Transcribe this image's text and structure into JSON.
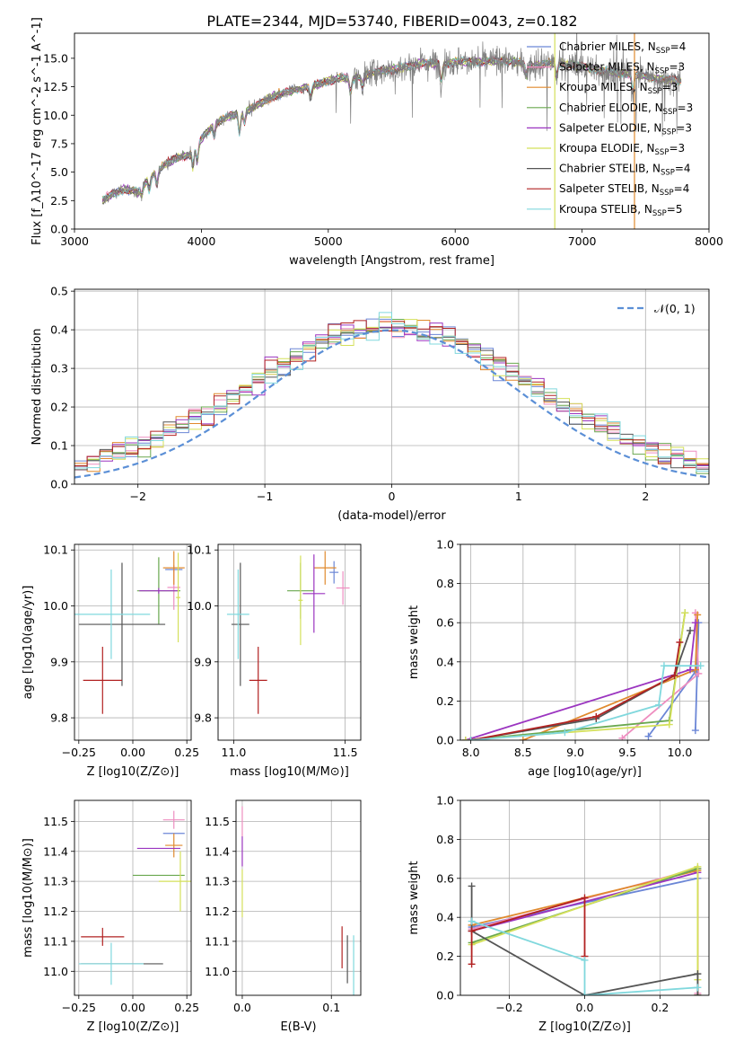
{
  "figure_title": "PLATE=2344, MJD=53740, FIBERID=0043, z=0.182",
  "colors": {
    "Chabrier MILES": "#6b86d6",
    "Salpeter MILES": "#ee8ec0",
    "Kroupa MILES": "#e08a2e",
    "Chabrier ELODIE": "#6aa84f",
    "Salpeter ELODIE": "#9b35c0",
    "Kroupa ELODIE": "#d4e05a",
    "Chabrier STELIB": "#555555",
    "Salpeter STELIB": "#b22222",
    "Kroupa STELIB": "#80d8dd",
    "gaussian": "#5b8fd6"
  },
  "chart_data": [
    {
      "id": "spectrum",
      "type": "line",
      "title": "PLATE=2344, MJD=53740, FIBERID=0043, z=0.182",
      "xlabel": "wavelength [Angstrom, rest frame]",
      "ylabel": "Flux [f_λ10^-17 erg cm^-2 s^-1 A^-1]",
      "xlim": [
        3000,
        8000
      ],
      "ylim": [
        0,
        17.2
      ],
      "xticks": [
        3000,
        4000,
        5000,
        6000,
        7000,
        8000
      ],
      "yticks": [
        0.0,
        2.5,
        5.0,
        7.5,
        10.0,
        12.5,
        15.0
      ],
      "grid": false,
      "legend_position": "top-right",
      "legend": [
        {
          "name": "Chabrier MILES, N_SSP=4",
          "base": "Chabrier MILES, N",
          "sub": "SSP",
          "tail": "=4",
          "color": "#6b86d6"
        },
        {
          "name": "Salpeter MILES, N_SSP=3",
          "base": "Salpeter MILES, N",
          "sub": "SSP",
          "tail": "=3",
          "color": "#ee8ec0"
        },
        {
          "name": "Kroupa MILES, N_SSP=3",
          "base": "Kroupa MILES, N",
          "sub": "SSP",
          "tail": "=3",
          "color": "#e08a2e"
        },
        {
          "name": "Chabrier ELODIE, N_SSP=3",
          "base": "Chabrier ELODIE, N",
          "sub": "SSP",
          "tail": "=3",
          "color": "#6aa84f"
        },
        {
          "name": "Salpeter ELODIE, N_SSP=3",
          "base": "Salpeter ELODIE, N",
          "sub": "SSP",
          "tail": "=3",
          "color": "#9b35c0"
        },
        {
          "name": "Kroupa ELODIE, N_SSP=3",
          "base": "Kroupa ELODIE, N",
          "sub": "SSP",
          "tail": "=3",
          "color": "#d4e05a"
        },
        {
          "name": "Chabrier STELIB, N_SSP=4",
          "base": "Chabrier STELIB, N",
          "sub": "SSP",
          "tail": "=4",
          "color": "#555555"
        },
        {
          "name": "Salpeter STELIB, N_SSP=4",
          "base": "Salpeter STELIB, N",
          "sub": "SSP",
          "tail": "=4",
          "color": "#b22222"
        },
        {
          "name": "Kroupa STELIB, N_SSP=5",
          "base": "Kroupa STELIB, N",
          "sub": "SSP",
          "tail": "=5",
          "color": "#80d8dd"
        }
      ],
      "envelope": [
        [
          3220,
          2.5
        ],
        [
          3300,
          3.1
        ],
        [
          3400,
          3.5
        ],
        [
          3500,
          3.3
        ],
        [
          3600,
          4.6
        ],
        [
          3700,
          5.6
        ],
        [
          3800,
          6.2
        ],
        [
          3900,
          6.5
        ],
        [
          4000,
          7.9
        ],
        [
          4100,
          9.2
        ],
        [
          4200,
          9.8
        ],
        [
          4300,
          10.2
        ],
        [
          4400,
          10.6
        ],
        [
          4500,
          11.3
        ],
        [
          4600,
          11.8
        ],
        [
          4700,
          12.1
        ],
        [
          4800,
          12.4
        ],
        [
          4900,
          12.6
        ],
        [
          5000,
          13.0
        ],
        [
          5100,
          13.3
        ],
        [
          5200,
          13.2
        ],
        [
          5300,
          13.5
        ],
        [
          5400,
          13.9
        ],
        [
          5500,
          14.0
        ],
        [
          5600,
          14.2
        ],
        [
          5700,
          14.5
        ],
        [
          5800,
          14.6
        ],
        [
          5900,
          14.5
        ],
        [
          6000,
          14.7
        ],
        [
          6200,
          14.7
        ],
        [
          6400,
          14.8
        ],
        [
          6600,
          14.4
        ],
        [
          6800,
          14.6
        ],
        [
          7000,
          14.3
        ],
        [
          7200,
          13.8
        ],
        [
          7400,
          13.6
        ],
        [
          7600,
          13.2
        ],
        [
          7800,
          13.0
        ]
      ],
      "absorption_features": [
        [
          3530,
          0.8
        ],
        [
          3590,
          1.0
        ],
        [
          3650,
          1.2
        ],
        [
          3934,
          1.4
        ],
        [
          3968,
          1.5
        ],
        [
          4101,
          1.0
        ],
        [
          4300,
          1.8
        ],
        [
          4340,
          1.0
        ],
        [
          4861,
          1.0
        ],
        [
          5175,
          1.3
        ],
        [
          5270,
          0.8
        ],
        [
          5890,
          1.5
        ],
        [
          6563,
          1.0
        ],
        [
          6800,
          1.2
        ],
        [
          7400,
          1.5
        ]
      ],
      "vertical_lines": [
        {
          "x": 6785,
          "color": "#d4e05a"
        },
        {
          "x": 7413,
          "color": "#e08a2e"
        }
      ]
    },
    {
      "id": "residuals",
      "type": "histogram",
      "xlabel": "(data-model)/error",
      "ylabel": "Normed distribution",
      "xlim": [
        -2.5,
        2.5
      ],
      "ylim": [
        0,
        0.505
      ],
      "xticks": [
        -2,
        -1,
        0,
        1,
        2
      ],
      "yticks": [
        0.0,
        0.1,
        0.2,
        0.3,
        0.4,
        0.5
      ],
      "grid": true,
      "legend_position": "top-right",
      "legend": [
        {
          "name": "𝒩(0, 1)",
          "color": "#5b8fd6",
          "dash": true
        }
      ],
      "bin_width": 0.1
    },
    {
      "id": "age_vs_Z",
      "type": "errorbar",
      "xlabel": "Z [log10(Z/Z⊙)]",
      "ylabel": "age [log10(age/yr)]",
      "xlim": [
        -0.27,
        0.27
      ],
      "ylim": [
        9.76,
        10.11
      ],
      "xticks": [
        -0.25,
        0.0,
        0.25
      ],
      "xtick_labels": [
        "−0.25",
        "0.00",
        "0.25"
      ],
      "yticks": [
        9.8,
        9.9,
        10.0,
        10.1
      ],
      "grid": true,
      "points": [
        {
          "model": "Chabrier MILES",
          "x": 0.19,
          "y": 10.065,
          "xerr": 0.04,
          "yerr": 0.005
        },
        {
          "model": "Salpeter MILES",
          "x": 0.19,
          "y": 10.033,
          "xerr": 0.03,
          "yerr": 0.04
        },
        {
          "model": "Kroupa MILES",
          "x": 0.19,
          "y": 10.068,
          "xerr": 0.05,
          "yerr": 0.03
        },
        {
          "model": "Chabrier ELODIE",
          "x": 0.12,
          "y": 10.027,
          "xerr": 0.1,
          "yerr": 0.06
        },
        {
          "model": "Salpeter ELODIE",
          "x": 0.12,
          "y": 10.027,
          "xerr": 0.09,
          "yerr": 0.005
        },
        {
          "model": "Kroupa ELODIE",
          "x": 0.21,
          "y": 10.015,
          "xerr": 0.01,
          "yerr": 0.08
        },
        {
          "model": "Chabrier STELIB",
          "x": -0.05,
          "y": 9.967,
          "xerr": 0.2,
          "yerr": 0.11
        },
        {
          "model": "Salpeter STELIB",
          "x": -0.14,
          "y": 9.867,
          "xerr": 0.09,
          "yerr": 0.06
        },
        {
          "model": "Kroupa STELIB",
          "x": -0.1,
          "y": 9.985,
          "xerr": 0.18,
          "yerr": 0.08
        }
      ]
    },
    {
      "id": "age_vs_mass",
      "type": "errorbar",
      "xlabel": "mass [log10(M/M⊙)]",
      "ylabel": "",
      "xlim": [
        10.93,
        11.57
      ],
      "ylim": [
        9.76,
        10.11
      ],
      "xticks": [
        11.0,
        11.5
      ],
      "yticks": [
        9.8,
        9.9,
        10.0,
        10.1
      ],
      "grid": true,
      "points": [
        {
          "model": "Chabrier MILES",
          "x": 11.45,
          "y": 10.06,
          "xerr": 0.02,
          "yerr": 0.02
        },
        {
          "model": "Salpeter MILES",
          "x": 11.49,
          "y": 10.032,
          "xerr": 0.03,
          "yerr": 0.03
        },
        {
          "model": "Kroupa MILES",
          "x": 11.41,
          "y": 10.068,
          "xerr": 0.05,
          "yerr": 0.03
        },
        {
          "model": "Chabrier ELODIE",
          "x": 11.3,
          "y": 10.027,
          "xerr": 0.06,
          "yerr": 0.05
        },
        {
          "model": "Salpeter ELODIE",
          "x": 11.36,
          "y": 10.022,
          "xerr": 0.05,
          "yerr": 0.07
        },
        {
          "model": "Kroupa ELODIE",
          "x": 11.3,
          "y": 10.01,
          "xerr": 0.01,
          "yerr": 0.08
        },
        {
          "model": "Chabrier STELIB",
          "x": 11.03,
          "y": 9.967,
          "xerr": 0.04,
          "yerr": 0.11
        },
        {
          "model": "Salpeter STELIB",
          "x": 11.11,
          "y": 9.867,
          "xerr": 0.04,
          "yerr": 0.06
        },
        {
          "model": "Kroupa STELIB",
          "x": 11.02,
          "y": 9.985,
          "xerr": 0.05,
          "yerr": 0.08
        }
      ]
    },
    {
      "id": "mass_weight_vs_age",
      "type": "line",
      "xlabel": "age [log10(age/yr)]",
      "ylabel": "mass weight",
      "xlim": [
        7.9,
        10.28
      ],
      "ylim": [
        0,
        1.0
      ],
      "xticks": [
        8.0,
        8.5,
        9.0,
        9.5,
        10.0
      ],
      "yticks": [
        0.0,
        0.2,
        0.4,
        0.6,
        0.8,
        1.0
      ],
      "grid": true,
      "series": [
        {
          "model": "Chabrier MILES",
          "points": [
            [
              9.7,
              0.02
            ],
            [
              10.15,
              0.35
            ],
            [
              10.18,
              0.6
            ],
            [
              10.15,
              0.05
            ]
          ]
        },
        {
          "model": "Salpeter MILES",
          "points": [
            [
              9.45,
              0.01
            ],
            [
              10.18,
              0.34
            ],
            [
              10.15,
              0.65
            ]
          ]
        },
        {
          "model": "Kroupa MILES",
          "points": [
            [
              8.5,
              0.0
            ],
            [
              10.15,
              0.36
            ],
            [
              10.17,
              0.64
            ]
          ]
        },
        {
          "model": "Chabrier ELODIE",
          "points": [
            [
              7.95,
              0.0
            ],
            [
              9.9,
              0.1
            ],
            [
              10.05,
              0.65
            ]
          ]
        },
        {
          "model": "Salpeter ELODIE",
          "points": [
            [
              7.95,
              0.0
            ],
            [
              10.1,
              0.36
            ],
            [
              10.15,
              0.6
            ]
          ]
        },
        {
          "model": "Kroupa ELODIE",
          "points": [
            [
              7.95,
              0.0
            ],
            [
              9.9,
              0.08
            ],
            [
              10.05,
              0.65
            ]
          ]
        },
        {
          "model": "Chabrier STELIB",
          "points": [
            [
              8.0,
              0.0
            ],
            [
              9.2,
              0.11
            ],
            [
              9.95,
              0.33
            ],
            [
              10.1,
              0.56
            ]
          ]
        },
        {
          "model": "Salpeter STELIB",
          "points": [
            [
              8.0,
              0.0
            ],
            [
              9.2,
              0.12
            ],
            [
              9.95,
              0.33
            ],
            [
              10.0,
              0.5
            ]
          ]
        },
        {
          "model": "Kroupa STELIB",
          "points": [
            [
              8.0,
              0.0
            ],
            [
              8.9,
              0.04
            ],
            [
              9.8,
              0.18
            ],
            [
              9.85,
              0.38
            ],
            [
              10.2,
              0.38
            ]
          ]
        }
      ]
    },
    {
      "id": "mass_vs_Z",
      "type": "errorbar",
      "xlabel": "Z [log10(Z/Z⊙)]",
      "ylabel": "mass [log10(M/M⊙)]",
      "xlim": [
        -0.27,
        0.27
      ],
      "ylim": [
        10.92,
        11.57
      ],
      "xticks": [
        -0.25,
        0.0,
        0.25
      ],
      "xtick_labels": [
        "−0.25",
        "0.00",
        "0.25"
      ],
      "yticks": [
        11.0,
        11.1,
        11.2,
        11.3,
        11.4,
        11.5
      ],
      "grid": true,
      "points": [
        {
          "model": "Chabrier MILES",
          "x": 0.19,
          "y": 11.46,
          "xerr": 0.05,
          "yerr": 0.0
        },
        {
          "model": "Salpeter MILES",
          "x": 0.19,
          "y": 11.505,
          "xerr": 0.05,
          "yerr": 0.03
        },
        {
          "model": "Kroupa MILES",
          "x": 0.19,
          "y": 11.42,
          "xerr": 0.04,
          "yerr": 0.04
        },
        {
          "model": "Chabrier ELODIE",
          "x": 0.12,
          "y": 11.32,
          "xerr": 0.12,
          "yerr": 0.0
        },
        {
          "model": "Salpeter ELODIE",
          "x": 0.12,
          "y": 11.41,
          "xerr": 0.1,
          "yerr": 0.0
        },
        {
          "model": "Kroupa ELODIE",
          "x": 0.22,
          "y": 11.3,
          "xerr": 0.1,
          "yerr": 0.1
        },
        {
          "model": "Chabrier STELIB",
          "x": -0.05,
          "y": 11.025,
          "xerr": 0.19,
          "yerr": 0.0
        },
        {
          "model": "Salpeter STELIB",
          "x": -0.14,
          "y": 11.115,
          "xerr": 0.1,
          "yerr": 0.03
        },
        {
          "model": "Kroupa STELIB",
          "x": -0.1,
          "y": 11.025,
          "xerr": 0.15,
          "yerr": 0.07
        }
      ]
    },
    {
      "id": "mass_vs_ebv",
      "type": "errorbar",
      "xlabel": "E(B-V)",
      "ylabel": "",
      "xlim": [
        -0.007,
        0.133
      ],
      "ylim": [
        10.92,
        11.57
      ],
      "xticks": [
        0.0,
        0.1
      ],
      "yticks": [
        11.0,
        11.1,
        11.2,
        11.3,
        11.4,
        11.5
      ],
      "grid": true,
      "points": [
        {
          "model": "Salpeter MILES",
          "x": 0.0,
          "y": 11.5,
          "xerr": 0.0,
          "yerr": 0.05
        },
        {
          "model": "Salpeter ELODIE",
          "x": 0.0,
          "y": 11.4,
          "xerr": 0.0,
          "yerr": 0.05
        },
        {
          "model": "Kroupa ELODIE",
          "x": 0.0,
          "y": 11.26,
          "xerr": 0.0,
          "yerr": 0.08
        },
        {
          "model": "Salpeter STELIB",
          "x": 0.112,
          "y": 11.08,
          "xerr": 0.0,
          "yerr": 0.07
        },
        {
          "model": "Chabrier STELIB",
          "x": 0.118,
          "y": 11.04,
          "xerr": 0.0,
          "yerr": 0.08
        },
        {
          "model": "Kroupa STELIB",
          "x": 0.125,
          "y": 11.02,
          "xerr": 0.0,
          "yerr": 0.1
        }
      ]
    },
    {
      "id": "mass_weight_vs_Z",
      "type": "line",
      "xlabel": "Z [log10(Z/Z⊙)]",
      "ylabel": "mass weight",
      "xlim": [
        -0.33,
        0.33
      ],
      "ylim": [
        0,
        1.0
      ],
      "xticks": [
        -0.2,
        0.0,
        0.2
      ],
      "xtick_labels": [
        "−0.2",
        "0.0",
        "0.2"
      ],
      "yticks": [
        0.0,
        0.2,
        0.4,
        0.6,
        0.8,
        1.0
      ],
      "grid": true,
      "series": [
        {
          "model": "Chabrier MILES",
          "points": [
            [
              -0.3,
              0.35
            ],
            [
              0.3,
              0.6
            ]
          ]
        },
        {
          "model": "Salpeter MILES",
          "points": [
            [
              -0.3,
              0.34
            ],
            [
              0.3,
              0.65
            ],
            [
              0.3,
              0.01
            ]
          ]
        },
        {
          "model": "Kroupa MILES",
          "points": [
            [
              -0.3,
              0.36
            ],
            [
              0.3,
              0.64
            ],
            [
              0.3,
              0.0
            ]
          ]
        },
        {
          "model": "Chabrier ELODIE",
          "points": [
            [
              -0.3,
              0.27
            ],
            [
              0.3,
              0.65
            ]
          ]
        },
        {
          "model": "Salpeter ELODIE",
          "points": [
            [
              -0.3,
              0.33
            ],
            [
              0.3,
              0.63
            ]
          ]
        },
        {
          "model": "Kroupa ELODIE",
          "points": [
            [
              -0.3,
              0.26
            ],
            [
              0.3,
              0.66
            ],
            [
              0.3,
              0.08
            ]
          ]
        },
        {
          "model": "Chabrier STELIB",
          "points": [
            [
              -0.3,
              0.56
            ],
            [
              -0.3,
              0.33
            ],
            [
              0.0,
              0.0
            ],
            [
              0.3,
              0.11
            ],
            [
              0.3,
              0.0
            ]
          ]
        },
        {
          "model": "Salpeter STELIB",
          "points": [
            [
              -0.3,
              0.16
            ],
            [
              -0.3,
              0.33
            ],
            [
              0.0,
              0.5
            ],
            [
              0.0,
              0.2
            ]
          ]
        },
        {
          "model": "Kroupa STELIB",
          "points": [
            [
              -0.3,
              0.38
            ],
            [
              0.0,
              0.18
            ],
            [
              0.0,
              0.0
            ],
            [
              0.3,
              0.04
            ]
          ]
        }
      ]
    }
  ]
}
